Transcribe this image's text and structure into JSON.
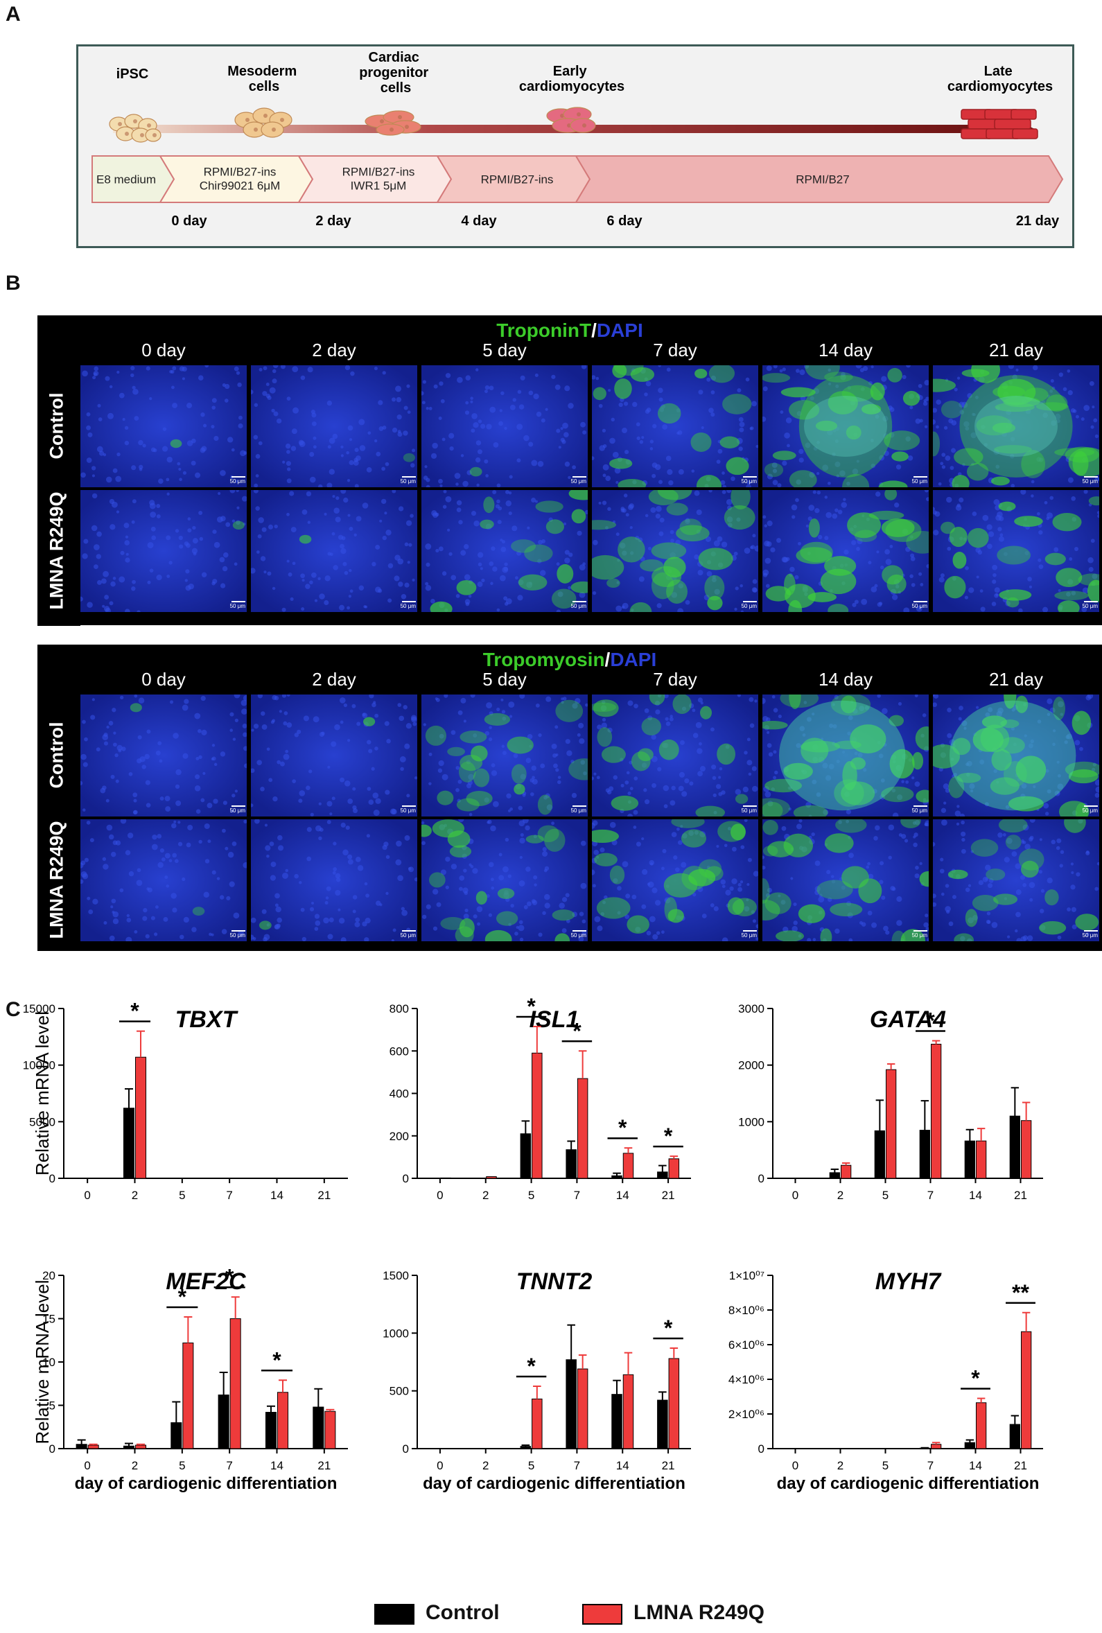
{
  "panel_labels": {
    "a": "A",
    "b": "B",
    "c": "C"
  },
  "panel_a": {
    "stages": [
      {
        "label": "iPSC",
        "color": "#f3dcae"
      },
      {
        "label": "Mesoderm cells",
        "color": "#f0c890"
      },
      {
        "label": "Cardiac progenitor cells",
        "color": "#e98070"
      },
      {
        "label": "Early cardiomyocytes",
        "color": "#e46a80"
      },
      {
        "label": "Late cardiomyocytes",
        "color": "#d8323a"
      }
    ],
    "media": [
      {
        "text": "E8 medium",
        "color": "#f0f3df"
      },
      {
        "text": "RPMI/B27-ins Chir99021 6μM",
        "color": "#fdf6e2"
      },
      {
        "text": "RPMI/B27-ins IWR1 5μM",
        "color": "#fbe7e4"
      },
      {
        "text": "RPMI/B27-ins",
        "color": "#f4c6c2"
      },
      {
        "text": "RPMI/B27",
        "color": "#eeb2b2"
      }
    ],
    "days": [
      "0 day",
      "2 day",
      "4 day",
      "6 day",
      "21 day"
    ]
  },
  "panel_b": {
    "blocks": [
      {
        "marker": "TroponinT",
        "counterstain": "DAPI"
      },
      {
        "marker": "Tropomyosin",
        "counterstain": "DAPI"
      }
    ],
    "days": [
      "0 day",
      "2 day",
      "5 day",
      "7 day",
      "14 day",
      "21 day"
    ],
    "rows": [
      "Control",
      "LMNA R249Q"
    ],
    "scale_bar": "50 μm",
    "green_signal": [
      [
        [
          0.02,
          0.03,
          0.05,
          0.55,
          0.7,
          0.85
        ],
        [
          0.02,
          0.03,
          0.5,
          0.75,
          0.7,
          0.65
        ]
      ],
      [
        [
          0.05,
          0.05,
          0.6,
          0.55,
          0.85,
          0.8
        ],
        [
          0.04,
          0.05,
          0.6,
          0.65,
          0.7,
          0.55
        ]
      ]
    ],
    "colors": {
      "nuclei": "#1f33c8",
      "signal": "#3fd23a",
      "background": "#050a3a"
    }
  },
  "panel_c": {
    "ylabel": "Relative mRNA level",
    "xlabel": "day of cardiogenic differentiation",
    "colors": {
      "control": "#000000",
      "mutant": "#ee3b3b"
    },
    "legend": [
      "Control",
      "LMNA R249Q"
    ]
  },
  "chart_data": [
    {
      "type": "bar",
      "title": "TBXT",
      "categories": [
        "0",
        "2",
        "5",
        "7",
        "14",
        "21"
      ],
      "ylim": [
        0,
        15000
      ],
      "yticks": [
        "0",
        "5000",
        "10000",
        "15000"
      ],
      "series": [
        {
          "name": "Control",
          "values": [
            0,
            6200,
            0,
            0,
            0,
            0
          ],
          "errors": [
            0,
            1700,
            0,
            0,
            0,
            0
          ]
        },
        {
          "name": "LMNA R249Q",
          "values": [
            0,
            10700,
            0,
            0,
            0,
            0
          ],
          "errors": [
            0,
            2300,
            0,
            0,
            0,
            0
          ]
        }
      ],
      "significance": [
        {
          "category": "2",
          "label": "*"
        }
      ]
    },
    {
      "type": "bar",
      "title": "ISL1",
      "categories": [
        "0",
        "2",
        "5",
        "7",
        "14",
        "21"
      ],
      "ylim": [
        0,
        800
      ],
      "yticks": [
        "0",
        "200",
        "400",
        "600",
        "800"
      ],
      "series": [
        {
          "name": "Control",
          "values": [
            0,
            0,
            210,
            135,
            12,
            30
          ],
          "errors": [
            0,
            0,
            60,
            40,
            12,
            30
          ]
        },
        {
          "name": "LMNA R249Q",
          "values": [
            2,
            8,
            590,
            470,
            118,
            92
          ],
          "errors": [
            0,
            0,
            125,
            130,
            25,
            12
          ]
        }
      ],
      "significance": [
        {
          "category": "5",
          "label": "*"
        },
        {
          "category": "7",
          "label": "*"
        },
        {
          "category": "14",
          "label": "*"
        },
        {
          "category": "21",
          "label": "*"
        }
      ]
    },
    {
      "type": "bar",
      "title": "GATA4",
      "categories": [
        "0",
        "2",
        "5",
        "7",
        "14",
        "21"
      ],
      "ylim": [
        0,
        3000
      ],
      "yticks": [
        "0",
        "1000",
        "2000",
        "3000"
      ],
      "series": [
        {
          "name": "Control",
          "values": [
            0,
            100,
            840,
            850,
            660,
            1100
          ],
          "errors": [
            0,
            60,
            540,
            520,
            200,
            500
          ]
        },
        {
          "name": "LMNA R249Q",
          "values": [
            0,
            230,
            1920,
            2370,
            660,
            1020
          ],
          "errors": [
            0,
            40,
            100,
            60,
            220,
            320
          ]
        }
      ],
      "significance": [
        {
          "category": "7",
          "label": "*"
        }
      ]
    },
    {
      "type": "bar",
      "title": "MEF2C",
      "categories": [
        "0",
        "2",
        "5",
        "7",
        "14",
        "21"
      ],
      "ylim": [
        0,
        20
      ],
      "yticks": [
        "0",
        "5",
        "10",
        "15",
        "20"
      ],
      "series": [
        {
          "name": "Control",
          "values": [
            0.5,
            0.3,
            3.0,
            6.2,
            4.2,
            4.8
          ],
          "errors": [
            0.5,
            0.3,
            2.4,
            2.6,
            0.7,
            2.1
          ]
        },
        {
          "name": "LMNA R249Q",
          "values": [
            0.4,
            0.4,
            12.2,
            15.0,
            6.5,
            4.3
          ],
          "errors": [
            0.1,
            0.1,
            3.0,
            2.5,
            1.4,
            0.2
          ]
        }
      ],
      "significance": [
        {
          "category": "5",
          "label": "*"
        },
        {
          "category": "7",
          "label": "*"
        },
        {
          "category": "14",
          "label": "*"
        }
      ]
    },
    {
      "type": "bar",
      "title": "TNNT2",
      "categories": [
        "0",
        "2",
        "5",
        "7",
        "14",
        "21"
      ],
      "ylim": [
        0,
        1500
      ],
      "yticks": [
        "0",
        "500",
        "1000",
        "1500"
      ],
      "series": [
        {
          "name": "Control",
          "values": [
            0,
            0,
            20,
            770,
            470,
            420
          ],
          "errors": [
            0,
            0,
            10,
            300,
            120,
            70
          ]
        },
        {
          "name": "LMNA R249Q",
          "values": [
            0,
            0,
            430,
            690,
            640,
            780
          ],
          "errors": [
            0,
            0,
            110,
            120,
            190,
            90
          ]
        }
      ],
      "significance": [
        {
          "category": "5",
          "label": "*"
        },
        {
          "category": "21",
          "label": "*"
        }
      ]
    },
    {
      "type": "bar",
      "title": "MYH7",
      "categories": [
        "0",
        "2",
        "5",
        "7",
        "14",
        "21"
      ],
      "ylim": [
        0,
        10000000
      ],
      "yticks": [
        "0",
        "2×10⁰⁶",
        "4×10⁰⁶",
        "6×10⁰⁶",
        "8×10⁰⁶",
        "1×10⁰⁷"
      ],
      "series": [
        {
          "name": "Control",
          "values": [
            0,
            0,
            0,
            30000,
            350000,
            1400000
          ],
          "errors": [
            0,
            0,
            0,
            20000,
            150000,
            500000
          ]
        },
        {
          "name": "LMNA R249Q",
          "values": [
            0,
            0,
            0,
            250000,
            2650000,
            6750000
          ],
          "errors": [
            0,
            0,
            0,
            100000,
            250000,
            1100000
          ]
        }
      ],
      "significance": [
        {
          "category": "14",
          "label": "*"
        },
        {
          "category": "21",
          "label": "**"
        }
      ]
    }
  ]
}
